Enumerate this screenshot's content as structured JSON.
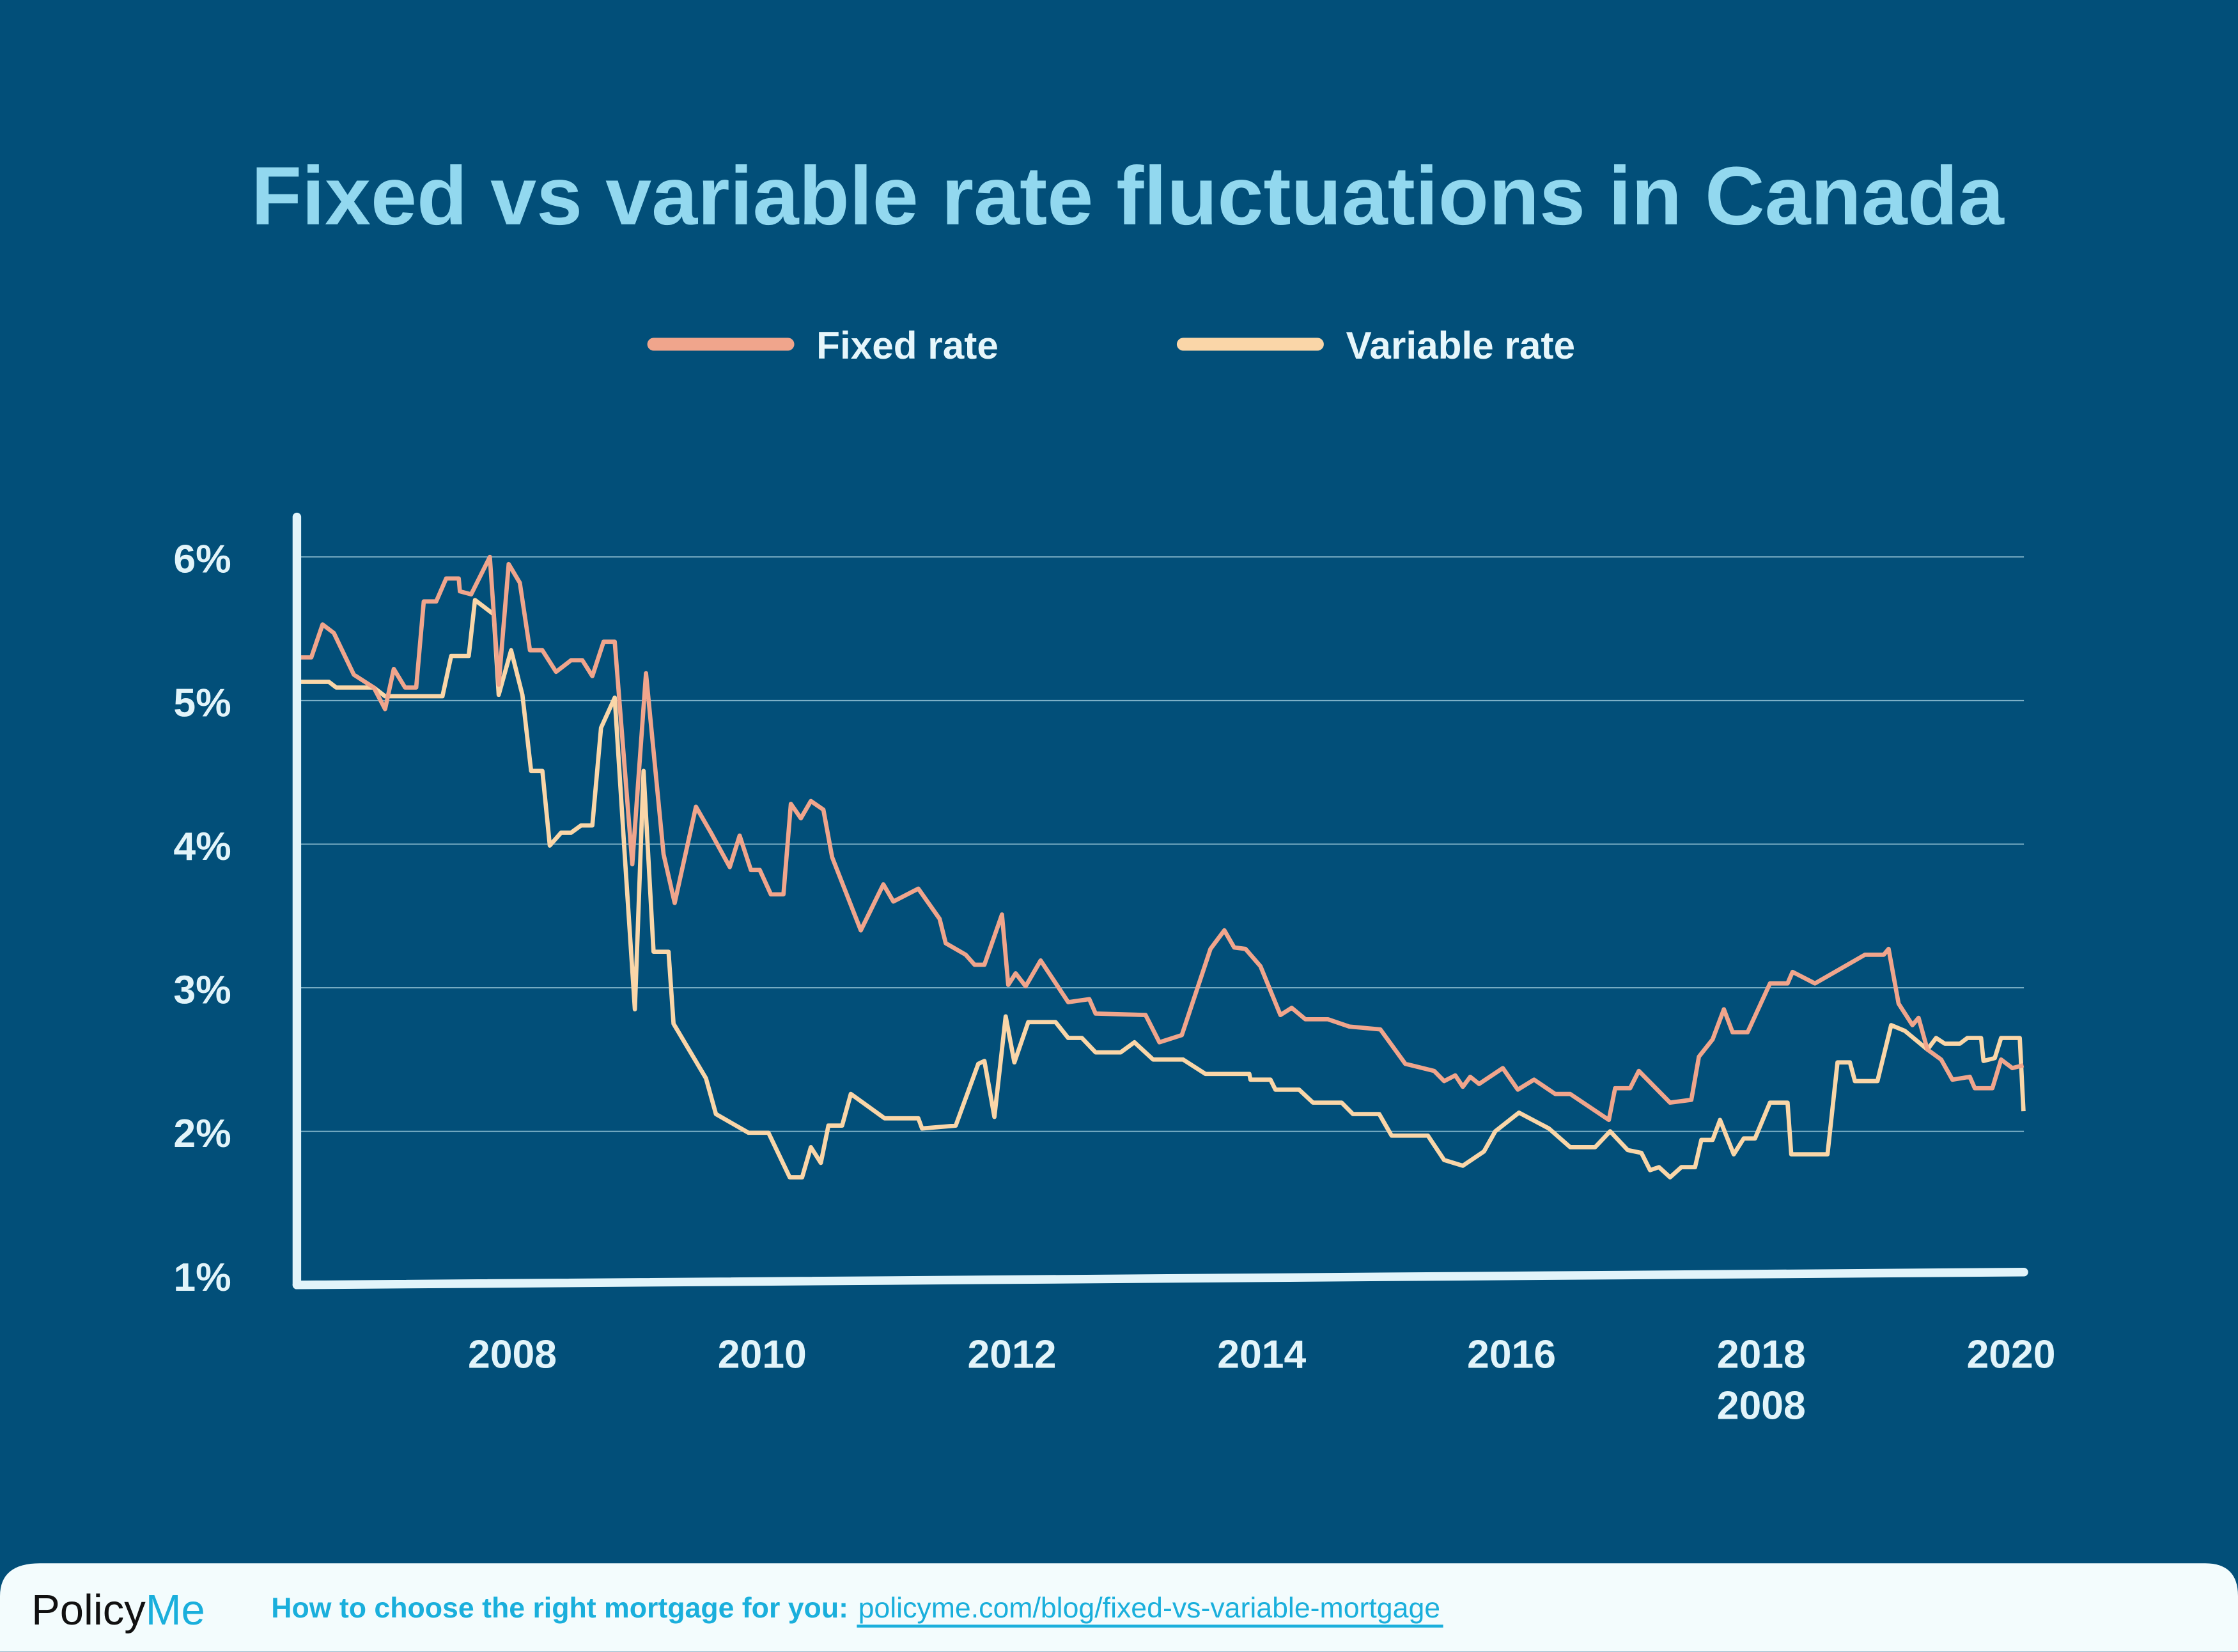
{
  "chart_data": {
    "type": "line",
    "title": "Fixed vs variable rate fluctuations in Canada",
    "xlabel": "",
    "ylabel": "",
    "x_ticks": [
      "2008",
      "2010",
      "2012",
      "2014",
      "2016",
      "2018",
      "2020"
    ],
    "x_tick_overlay": "2008",
    "y_ticks": [
      "6%",
      "5%",
      "4%",
      "3%",
      "2%",
      "1%"
    ],
    "y_tick_values": [
      6,
      5,
      4,
      3,
      2,
      1
    ],
    "xlim": [
      2006.27,
      2020.13
    ],
    "ylim": [
      1,
      6
    ],
    "grid": "horizontal",
    "legend_position": "top-center",
    "series": [
      {
        "name": "Fixed rate",
        "color": "#f0a58c",
        "points": [
          [
            2006.27,
            5.3
          ],
          [
            2006.39,
            5.3
          ],
          [
            2006.48,
            5.53
          ],
          [
            2006.57,
            5.47
          ],
          [
            2006.73,
            5.18
          ],
          [
            2006.89,
            5.09
          ],
          [
            2006.98,
            4.94
          ],
          [
            2007.05,
            5.22
          ],
          [
            2007.14,
            5.09
          ],
          [
            2007.23,
            5.09
          ],
          [
            2007.29,
            5.69
          ],
          [
            2007.39,
            5.69
          ],
          [
            2007.47,
            5.85
          ],
          [
            2007.57,
            5.85
          ],
          [
            2007.58,
            5.76
          ],
          [
            2007.67,
            5.74
          ],
          [
            2007.82,
            6.0
          ],
          [
            2007.89,
            5.11
          ],
          [
            2007.97,
            5.95
          ],
          [
            2008.06,
            5.82
          ],
          [
            2008.14,
            5.35
          ],
          [
            2008.24,
            5.35
          ],
          [
            2008.35,
            5.2
          ],
          [
            2008.47,
            5.28
          ],
          [
            2008.56,
            5.28
          ],
          [
            2008.64,
            5.17
          ],
          [
            2008.73,
            5.41
          ],
          [
            2008.82,
            5.41
          ],
          [
            2008.96,
            3.86
          ],
          [
            2009.07,
            5.19
          ],
          [
            2009.21,
            3.93
          ],
          [
            2009.3,
            3.59
          ],
          [
            2009.47,
            4.26
          ],
          [
            2009.59,
            4.08
          ],
          [
            2009.74,
            3.84
          ],
          [
            2009.82,
            4.06
          ],
          [
            2009.91,
            3.82
          ],
          [
            2009.98,
            3.82
          ],
          [
            2010.07,
            3.65
          ],
          [
            2010.17,
            3.65
          ],
          [
            2010.23,
            4.28
          ],
          [
            2010.31,
            4.18
          ],
          [
            2010.39,
            4.3
          ],
          [
            2010.49,
            4.24
          ],
          [
            2010.56,
            3.91
          ],
          [
            2010.79,
            3.4
          ],
          [
            2010.97,
            3.72
          ],
          [
            2011.05,
            3.6
          ],
          [
            2011.25,
            3.69
          ],
          [
            2011.42,
            3.48
          ],
          [
            2011.47,
            3.31
          ],
          [
            2011.63,
            3.23
          ],
          [
            2011.7,
            3.16
          ],
          [
            2011.78,
            3.16
          ],
          [
            2011.92,
            3.51
          ],
          [
            2011.97,
            3.02
          ],
          [
            2012.03,
            3.1
          ],
          [
            2012.11,
            3.01
          ],
          [
            2012.23,
            3.19
          ],
          [
            2012.45,
            2.9
          ],
          [
            2012.62,
            2.92
          ],
          [
            2012.67,
            2.82
          ],
          [
            2013.07,
            2.81
          ],
          [
            2013.18,
            2.62
          ],
          [
            2013.36,
            2.67
          ],
          [
            2013.59,
            3.27
          ],
          [
            2013.7,
            3.4
          ],
          [
            2013.78,
            3.28
          ],
          [
            2013.87,
            3.27
          ],
          [
            2013.99,
            3.15
          ],
          [
            2014.15,
            2.81
          ],
          [
            2014.24,
            2.86
          ],
          [
            2014.35,
            2.78
          ],
          [
            2014.53,
            2.78
          ],
          [
            2014.7,
            2.73
          ],
          [
            2014.95,
            2.71
          ],
          [
            2015.15,
            2.47
          ],
          [
            2015.38,
            2.42
          ],
          [
            2015.46,
            2.35
          ],
          [
            2015.55,
            2.39
          ],
          [
            2015.61,
            2.31
          ],
          [
            2015.67,
            2.38
          ],
          [
            2015.74,
            2.33
          ],
          [
            2015.93,
            2.44
          ],
          [
            2016.05,
            2.29
          ],
          [
            2016.18,
            2.36
          ],
          [
            2016.35,
            2.26
          ],
          [
            2016.47,
            2.26
          ],
          [
            2016.78,
            2.08
          ],
          [
            2016.83,
            2.3
          ],
          [
            2016.95,
            2.3
          ],
          [
            2017.02,
            2.42
          ],
          [
            2017.27,
            2.2
          ],
          [
            2017.44,
            2.22
          ],
          [
            2017.5,
            2.52
          ],
          [
            2017.61,
            2.64
          ],
          [
            2017.7,
            2.85
          ],
          [
            2017.77,
            2.69
          ],
          [
            2017.89,
            2.69
          ],
          [
            2018.07,
            3.03
          ],
          [
            2018.21,
            3.03
          ],
          [
            2018.25,
            3.11
          ],
          [
            2018.43,
            3.03
          ],
          [
            2018.83,
            3.23
          ],
          [
            2018.98,
            3.23
          ],
          [
            2019.02,
            3.27
          ],
          [
            2019.1,
            2.89
          ],
          [
            2019.21,
            2.74
          ],
          [
            2019.26,
            2.79
          ],
          [
            2019.33,
            2.57
          ],
          [
            2019.44,
            2.5
          ],
          [
            2019.53,
            2.36
          ],
          [
            2019.67,
            2.38
          ],
          [
            2019.71,
            2.3
          ],
          [
            2019.85,
            2.3
          ],
          [
            2019.92,
            2.5
          ],
          [
            2020.01,
            2.44
          ],
          [
            2020.1,
            2.46
          ]
        ]
      },
      {
        "name": "Variable rate",
        "color": "#fad6a8",
        "points": [
          [
            2006.27,
            5.13
          ],
          [
            2006.53,
            5.13
          ],
          [
            2006.59,
            5.09
          ],
          [
            2006.89,
            5.09
          ],
          [
            2006.98,
            5.03
          ],
          [
            2007.44,
            5.03
          ],
          [
            2007.51,
            5.31
          ],
          [
            2007.65,
            5.31
          ],
          [
            2007.7,
            5.7
          ],
          [
            2007.85,
            5.6
          ],
          [
            2007.89,
            5.04
          ],
          [
            2007.99,
            5.35
          ],
          [
            2008.08,
            5.04
          ],
          [
            2008.15,
            4.51
          ],
          [
            2008.24,
            4.51
          ],
          [
            2008.3,
            3.99
          ],
          [
            2008.39,
            4.08
          ],
          [
            2008.47,
            4.08
          ],
          [
            2008.55,
            4.13
          ],
          [
            2008.64,
            4.13
          ],
          [
            2008.71,
            4.81
          ],
          [
            2008.82,
            5.02
          ],
          [
            2008.9,
            3.91
          ],
          [
            2008.98,
            2.85
          ],
          [
            2009.05,
            4.51
          ],
          [
            2009.13,
            3.25
          ],
          [
            2009.25,
            3.25
          ],
          [
            2009.29,
            2.75
          ],
          [
            2009.55,
            2.37
          ],
          [
            2009.63,
            2.12
          ],
          [
            2009.89,
            1.99
          ],
          [
            2010.05,
            1.99
          ],
          [
            2010.22,
            1.68
          ],
          [
            2010.32,
            1.68
          ],
          [
            2010.39,
            1.89
          ],
          [
            2010.47,
            1.78
          ],
          [
            2010.53,
            2.04
          ],
          [
            2010.64,
            2.04
          ],
          [
            2010.71,
            2.26
          ],
          [
            2010.98,
            2.09
          ],
          [
            2011.25,
            2.09
          ],
          [
            2011.28,
            2.02
          ],
          [
            2011.55,
            2.04
          ],
          [
            2011.73,
            2.47
          ],
          [
            2011.78,
            2.49
          ],
          [
            2011.86,
            2.1
          ],
          [
            2011.95,
            2.8
          ],
          [
            2012.02,
            2.48
          ],
          [
            2012.13,
            2.76
          ],
          [
            2012.35,
            2.76
          ],
          [
            2012.45,
            2.65
          ],
          [
            2012.56,
            2.65
          ],
          [
            2012.67,
            2.55
          ],
          [
            2012.87,
            2.55
          ],
          [
            2012.98,
            2.62
          ],
          [
            2013.13,
            2.5
          ],
          [
            2013.37,
            2.5
          ],
          [
            2013.55,
            2.4
          ],
          [
            2013.9,
            2.4
          ],
          [
            2013.91,
            2.36
          ],
          [
            2014.07,
            2.36
          ],
          [
            2014.11,
            2.29
          ],
          [
            2014.3,
            2.29
          ],
          [
            2014.41,
            2.2
          ],
          [
            2014.64,
            2.2
          ],
          [
            2014.73,
            2.12
          ],
          [
            2014.94,
            2.12
          ],
          [
            2015.04,
            1.97
          ],
          [
            2015.33,
            1.97
          ],
          [
            2015.46,
            1.8
          ],
          [
            2015.61,
            1.76
          ],
          [
            2015.78,
            1.86
          ],
          [
            2015.87,
            2.0
          ],
          [
            2016.06,
            2.13
          ],
          [
            2016.3,
            2.02
          ],
          [
            2016.47,
            1.89
          ],
          [
            2016.67,
            1.89
          ],
          [
            2016.79,
            2.0
          ],
          [
            2016.93,
            1.87
          ],
          [
            2017.04,
            1.85
          ],
          [
            2017.11,
            1.73
          ],
          [
            2017.18,
            1.75
          ],
          [
            2017.27,
            1.68
          ],
          [
            2017.36,
            1.75
          ],
          [
            2017.47,
            1.75
          ],
          [
            2017.52,
            1.94
          ],
          [
            2017.61,
            1.94
          ],
          [
            2017.67,
            2.08
          ],
          [
            2017.78,
            1.84
          ],
          [
            2017.86,
            1.95
          ],
          [
            2017.95,
            1.95
          ],
          [
            2018.07,
            2.2
          ],
          [
            2018.21,
            2.2
          ],
          [
            2018.24,
            1.84
          ],
          [
            2018.53,
            1.84
          ],
          [
            2018.61,
            2.48
          ],
          [
            2018.71,
            2.48
          ],
          [
            2018.75,
            2.35
          ],
          [
            2018.93,
            2.35
          ],
          [
            2019.04,
            2.74
          ],
          [
            2019.15,
            2.7
          ],
          [
            2019.33,
            2.57
          ],
          [
            2019.4,
            2.65
          ],
          [
            2019.47,
            2.61
          ],
          [
            2019.59,
            2.61
          ],
          [
            2019.65,
            2.65
          ],
          [
            2019.76,
            2.65
          ],
          [
            2019.78,
            2.49
          ],
          [
            2019.87,
            2.51
          ],
          [
            2019.92,
            2.65
          ],
          [
            2020.07,
            2.65
          ],
          [
            2020.1,
            2.14
          ]
        ]
      }
    ]
  },
  "colors": {
    "background": "#024f79",
    "title": "#92d8ef",
    "axis": "#e2f4fa",
    "footer_background": "#f3fcfd",
    "brand_accent": "#1aafdc"
  },
  "footer": {
    "logo_part1": "Policy",
    "logo_part2": "Me",
    "caption": "How to choose the right mortgage for you:",
    "link": "policyme.com/blog/fixed-vs-variable-mortgage"
  }
}
